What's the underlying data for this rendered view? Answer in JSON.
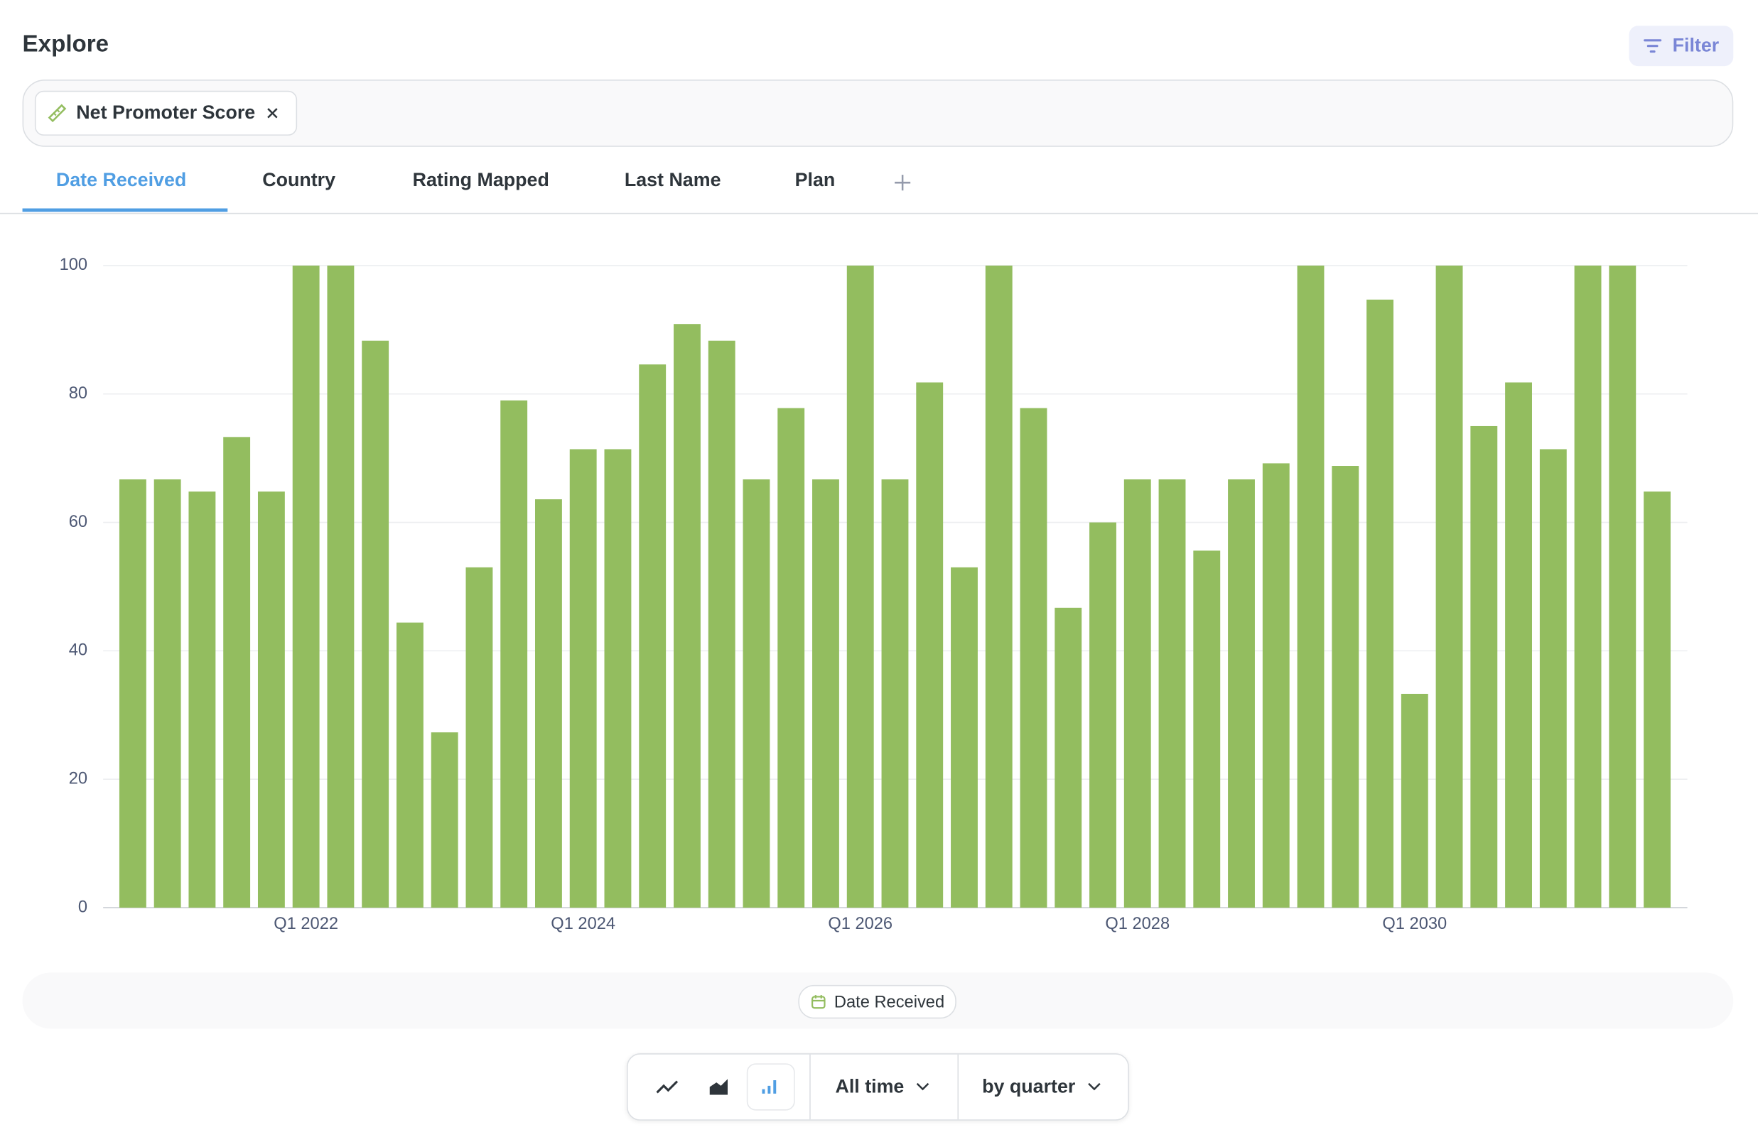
{
  "header": {
    "title": "Explore",
    "filter": "Filter"
  },
  "metric_chip": "Net Promoter Score",
  "tabs": [
    "Date Received",
    "Country",
    "Rating Mapped",
    "Last Name",
    "Plan"
  ],
  "chart_data": {
    "type": "bar",
    "categories": [
      null,
      null,
      null,
      null,
      null,
      "Q1 2022",
      null,
      null,
      null,
      null,
      null,
      null,
      null,
      "Q1 2024",
      null,
      null,
      null,
      null,
      null,
      null,
      null,
      "Q1 2026",
      null,
      null,
      null,
      null,
      null,
      null,
      null,
      "Q1 2028",
      null,
      null,
      null,
      null,
      null,
      null,
      null,
      "Q1 2030",
      null,
      null,
      null,
      null,
      null,
      null,
      null
    ],
    "values": [
      66.7,
      66.7,
      64.8,
      73.3,
      64.8,
      100,
      100,
      88.3,
      44.4,
      27.3,
      53,
      79,
      63.6,
      71.4,
      71.4,
      84.6,
      90.9,
      88.3,
      66.7,
      77.8,
      66.7,
      100,
      66.7,
      81.8,
      53,
      100,
      77.8,
      46.7,
      60,
      66.7,
      66.7,
      55.6,
      66.7,
      69.2,
      100,
      68.8,
      94.7,
      33.3,
      100,
      75,
      81.8,
      71.4,
      100,
      100,
      64.8
    ],
    "color": "#93bd5f",
    "ylim": [
      0,
      100
    ],
    "yticks": [
      0,
      20,
      40,
      60,
      80,
      100
    ],
    "grid": true
  },
  "dimension_pill": "Date Received",
  "toolbar": {
    "range": "All time",
    "granularity": "by quarter"
  }
}
